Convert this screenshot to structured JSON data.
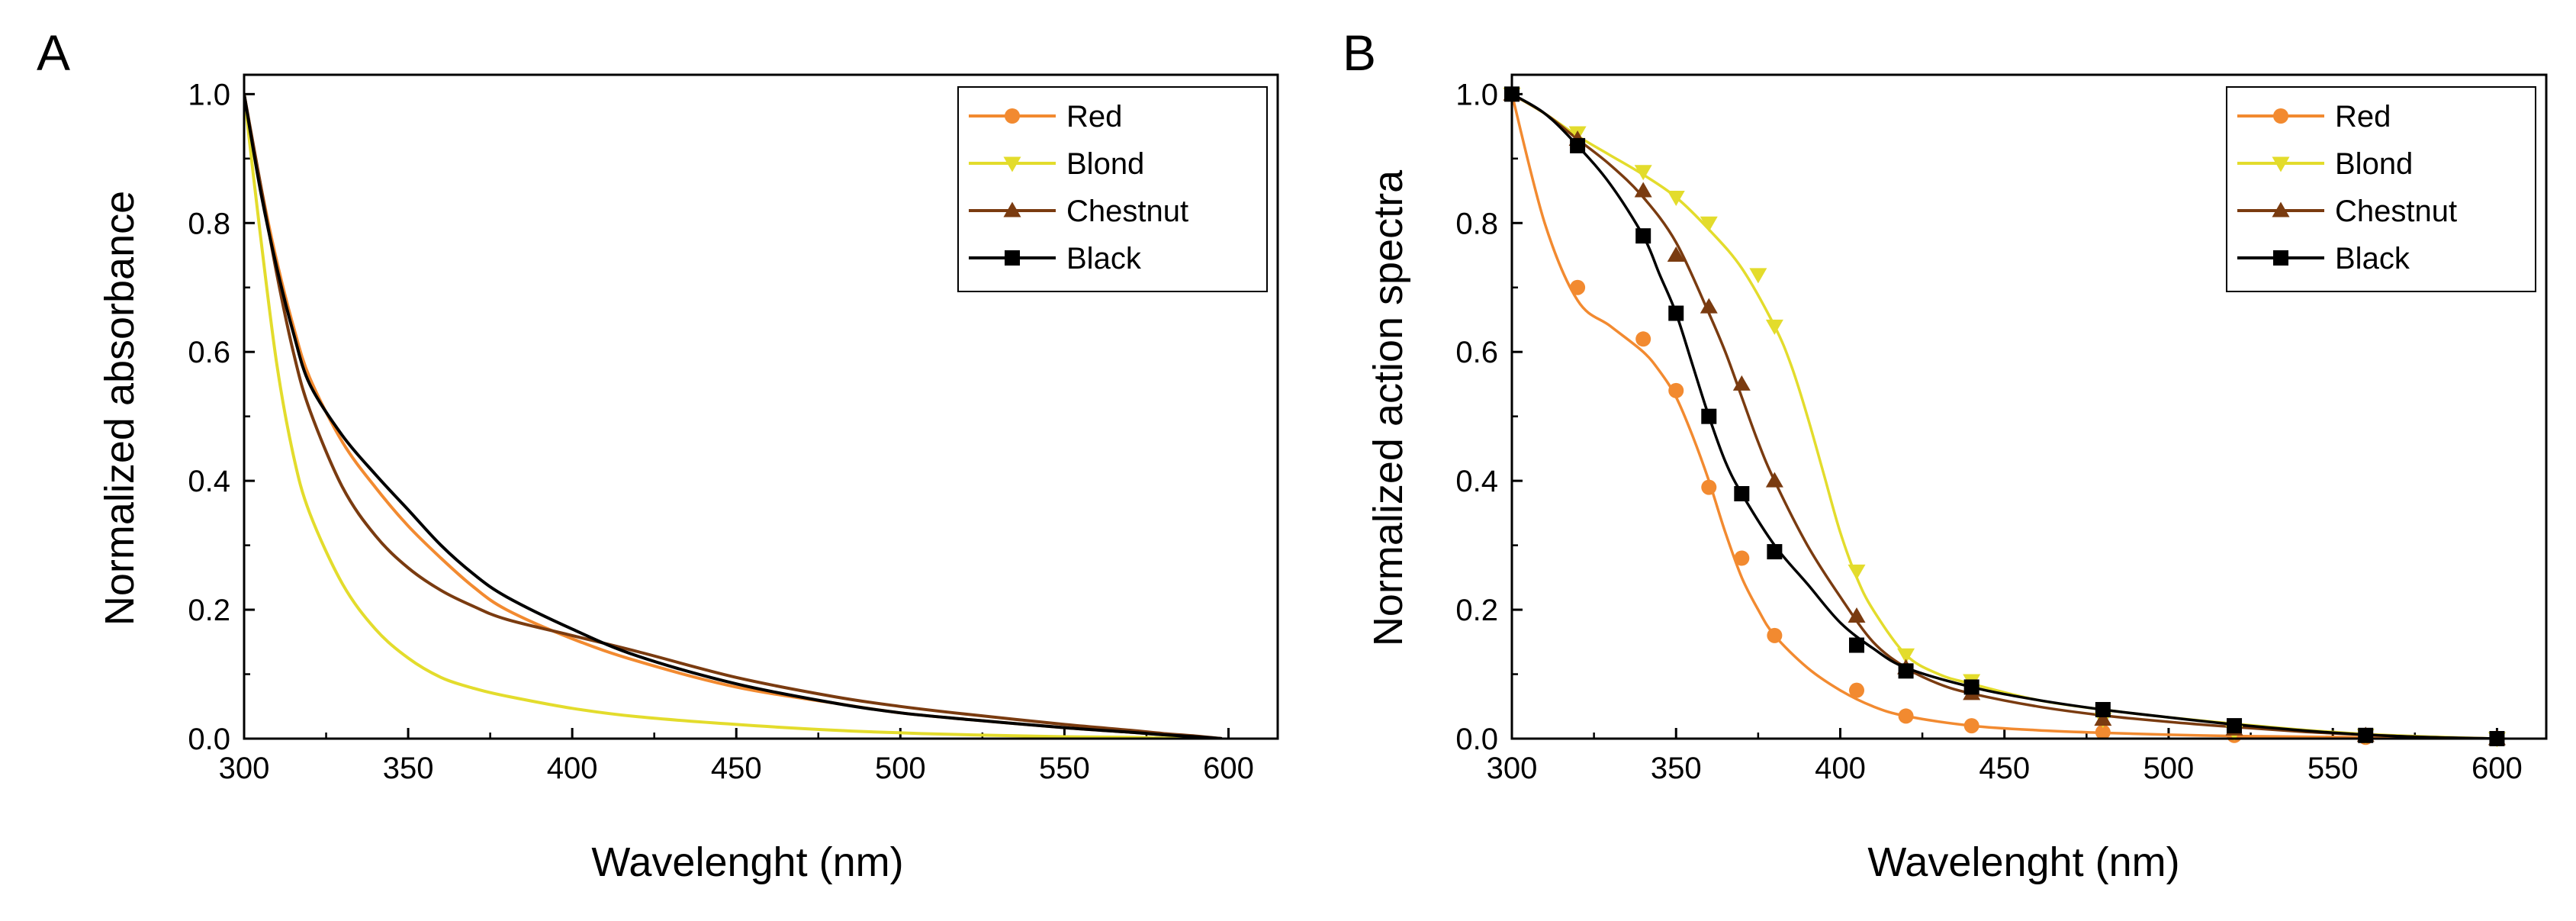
{
  "chart_data": [
    {
      "panel": "A",
      "type": "line",
      "title": "",
      "xlabel": "Wavelenght (nm)",
      "ylabel": "Normalized absorbance",
      "xlim": [
        300,
        615
      ],
      "ylim": [
        0,
        1.03
      ],
      "xticks": [
        300,
        350,
        400,
        450,
        500,
        550,
        600
      ],
      "yticks": [
        0.0,
        0.2,
        0.4,
        0.6,
        0.8,
        1.0
      ],
      "xtick_labels": [
        "300",
        "350",
        "400",
        "450",
        "500",
        "550",
        "600"
      ],
      "ytick_labels": [
        "0.0",
        "0.2",
        "0.4",
        "0.6",
        "0.8",
        "1.0"
      ],
      "legend_position": "top-right",
      "series": [
        {
          "name": "Red",
          "color": "#f28a30",
          "marker": "circle",
          "x": [
            300,
            305,
            310,
            315,
            320,
            330,
            340,
            350,
            360,
            370,
            380,
            400,
            420,
            450,
            480,
            500,
            520,
            550,
            570,
            580,
            590,
            598
          ],
          "y": [
            1.0,
            0.86,
            0.74,
            0.64,
            0.56,
            0.46,
            0.39,
            0.33,
            0.28,
            0.235,
            0.2,
            0.155,
            0.12,
            0.08,
            0.055,
            0.04,
            0.03,
            0.017,
            0.01,
            0.006,
            0.003,
            0.0
          ]
        },
        {
          "name": "Blond",
          "color": "#e3dc2c",
          "marker": "triangle-down",
          "x": [
            300,
            305,
            310,
            315,
            320,
            330,
            340,
            350,
            360,
            370,
            380,
            400,
            420,
            450,
            480,
            500,
            520,
            550,
            570,
            580,
            590,
            598
          ],
          "y": [
            1.0,
            0.78,
            0.58,
            0.44,
            0.35,
            0.24,
            0.17,
            0.125,
            0.095,
            0.078,
            0.066,
            0.047,
            0.034,
            0.022,
            0.013,
            0.009,
            0.006,
            0.003,
            0.002,
            0.001,
            0.0005,
            0.0
          ]
        },
        {
          "name": "Chestnut",
          "color": "#7a3b10",
          "marker": "triangle-up",
          "x": [
            300,
            305,
            310,
            315,
            320,
            330,
            340,
            350,
            360,
            370,
            380,
            400,
            420,
            450,
            480,
            500,
            520,
            550,
            570,
            580,
            590,
            598
          ],
          "y": [
            1.0,
            0.86,
            0.72,
            0.6,
            0.51,
            0.39,
            0.315,
            0.265,
            0.23,
            0.205,
            0.185,
            0.16,
            0.135,
            0.095,
            0.065,
            0.05,
            0.038,
            0.022,
            0.013,
            0.008,
            0.004,
            0.0
          ]
        },
        {
          "name": "Black",
          "color": "#000000",
          "marker": "square",
          "x": [
            300,
            305,
            310,
            315,
            320,
            330,
            340,
            350,
            360,
            370,
            380,
            400,
            420,
            450,
            480,
            500,
            520,
            550,
            570,
            580,
            590,
            598
          ],
          "y": [
            1.0,
            0.85,
            0.73,
            0.63,
            0.55,
            0.47,
            0.41,
            0.355,
            0.3,
            0.255,
            0.22,
            0.17,
            0.128,
            0.085,
            0.055,
            0.04,
            0.03,
            0.017,
            0.01,
            0.006,
            0.003,
            0.0
          ]
        }
      ]
    },
    {
      "panel": "B",
      "type": "line",
      "title": "",
      "xlabel": "Wavelenght (nm)",
      "ylabel": "Normalized action spectra",
      "xlim": [
        300,
        615
      ],
      "ylim": [
        0,
        1.03
      ],
      "xticks": [
        300,
        350,
        400,
        450,
        500,
        550,
        600
      ],
      "yticks": [
        0.0,
        0.2,
        0.4,
        0.6,
        0.8,
        1.0
      ],
      "xtick_labels": [
        "300",
        "350",
        "400",
        "450",
        "500",
        "550",
        "600"
      ],
      "ytick_labels": [
        "0.0",
        "0.2",
        "0.4",
        "0.6",
        "0.8",
        "1.0"
      ],
      "legend_position": "top-right",
      "series": [
        {
          "name": "Red",
          "color": "#f28a30",
          "marker": "circle",
          "points_x": [
            300,
            320,
            340,
            350,
            360,
            370,
            380,
            405,
            420,
            440,
            480,
            520,
            560,
            600
          ],
          "points_y": [
            1.0,
            0.7,
            0.62,
            0.54,
            0.39,
            0.28,
            0.16,
            0.075,
            0.035,
            0.02,
            0.01,
            0.005,
            0.002,
            0.0
          ],
          "fit_x": [
            300,
            310,
            320,
            330,
            340,
            345,
            350,
            355,
            360,
            365,
            370,
            375,
            380,
            390,
            400,
            410,
            420,
            440,
            460,
            480,
            500,
            520,
            540,
            560,
            580,
            600
          ],
          "fit_y": [
            1.0,
            0.8,
            0.68,
            0.64,
            0.6,
            0.57,
            0.53,
            0.47,
            0.4,
            0.32,
            0.25,
            0.2,
            0.16,
            0.11,
            0.075,
            0.05,
            0.035,
            0.02,
            0.013,
            0.009,
            0.006,
            0.004,
            0.003,
            0.002,
            0.001,
            0.0
          ]
        },
        {
          "name": "Blond",
          "color": "#e3dc2c",
          "marker": "triangle-down",
          "points_x": [
            300,
            320,
            340,
            350,
            360,
            375,
            380,
            405,
            420,
            440,
            480,
            520,
            560,
            600
          ],
          "points_y": [
            1.0,
            0.94,
            0.88,
            0.84,
            0.8,
            0.72,
            0.64,
            0.26,
            0.13,
            0.09,
            0.03,
            0.01,
            0.005,
            0.0
          ],
          "fit_x": [
            300,
            310,
            320,
            330,
            340,
            350,
            360,
            370,
            380,
            385,
            390,
            395,
            400,
            405,
            410,
            420,
            430,
            440,
            460,
            480,
            500,
            520,
            540,
            560,
            580,
            600
          ],
          "fit_y": [
            1.0,
            0.97,
            0.935,
            0.905,
            0.875,
            0.84,
            0.79,
            0.73,
            0.64,
            0.58,
            0.5,
            0.41,
            0.32,
            0.25,
            0.2,
            0.13,
            0.1,
            0.085,
            0.06,
            0.045,
            0.033,
            0.023,
            0.014,
            0.007,
            0.003,
            0.0
          ]
        },
        {
          "name": "Chestnut",
          "color": "#7a3b10",
          "marker": "triangle-up",
          "points_x": [
            300,
            320,
            340,
            350,
            360,
            370,
            380,
            405,
            420,
            440,
            480,
            520,
            560,
            600
          ],
          "points_y": [
            1.0,
            0.93,
            0.85,
            0.75,
            0.67,
            0.55,
            0.4,
            0.19,
            0.11,
            0.07,
            0.03,
            0.015,
            0.005,
            0.0
          ],
          "fit_x": [
            300,
            310,
            320,
            330,
            340,
            350,
            360,
            365,
            370,
            375,
            380,
            390,
            400,
            410,
            420,
            430,
            440,
            460,
            480,
            500,
            520,
            540,
            560,
            580,
            600
          ],
          "fit_y": [
            1.0,
            0.97,
            0.93,
            0.89,
            0.84,
            0.77,
            0.66,
            0.6,
            0.53,
            0.46,
            0.4,
            0.3,
            0.22,
            0.15,
            0.11,
            0.085,
            0.07,
            0.05,
            0.036,
            0.026,
            0.018,
            0.011,
            0.006,
            0.002,
            0.0
          ]
        },
        {
          "name": "Black",
          "color": "#000000",
          "marker": "square",
          "points_x": [
            300,
            320,
            340,
            350,
            360,
            370,
            380,
            405,
            420,
            440,
            480,
            520,
            560,
            600
          ],
          "points_y": [
            1.0,
            0.92,
            0.78,
            0.66,
            0.5,
            0.38,
            0.29,
            0.145,
            0.105,
            0.08,
            0.045,
            0.02,
            0.005,
            0.0
          ],
          "fit_x": [
            300,
            310,
            320,
            330,
            340,
            345,
            350,
            355,
            360,
            365,
            370,
            380,
            390,
            400,
            410,
            420,
            440,
            460,
            480,
            500,
            520,
            540,
            560,
            580,
            600
          ],
          "fit_y": [
            1.0,
            0.97,
            0.92,
            0.86,
            0.78,
            0.72,
            0.66,
            0.58,
            0.5,
            0.43,
            0.38,
            0.3,
            0.24,
            0.18,
            0.14,
            0.11,
            0.08,
            0.06,
            0.045,
            0.033,
            0.022,
            0.013,
            0.006,
            0.002,
            0.0
          ]
        }
      ]
    }
  ]
}
